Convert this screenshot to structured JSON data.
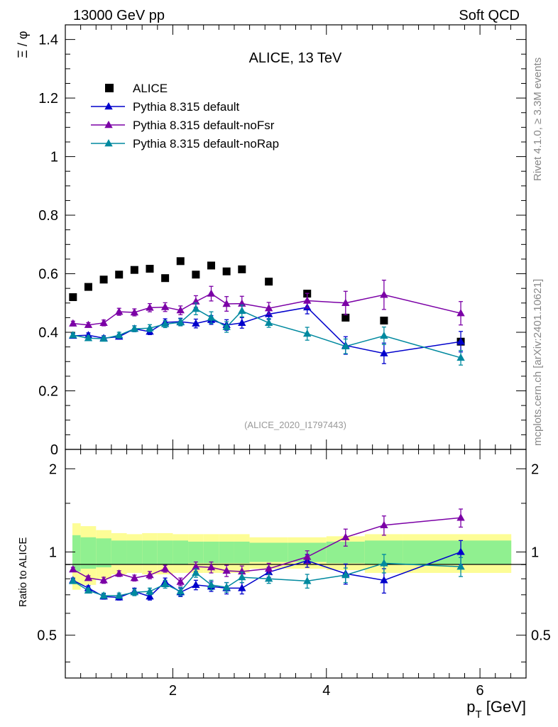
{
  "header": {
    "left_label": "13000 GeV pp",
    "right_label": "Soft QCD",
    "side_label_top": "Rivet 4.1.0, ≥ 3.3M events",
    "side_label_bottom": "mcplots.cern.ch [arXiv:2401.10621]",
    "ratio_ylabel": "Ratio to ALICE",
    "analysis_tag": "(ALICE_2020_I1797443)",
    "x_title_main": "p",
    "x_title_sub": "T",
    "x_title_unit": " [GeV]",
    "y_title": "Ξ / φ"
  },
  "colors": {
    "data": "#000000",
    "default": "#0000cc",
    "noFsr": "#7b00a6",
    "noRap": "#00899f",
    "band_inner": "#90f090",
    "band_outer": "#fdfd96"
  },
  "chart_data": [
    {
      "type": "scatter",
      "title": "ALICE, 13 TeV",
      "xlabel": "p_T [GeV]",
      "ylabel": "Ξ / φ",
      "xlim": [
        0.6,
        6.6
      ],
      "ylim": [
        0,
        1.45
      ],
      "yticks": [
        "0",
        "0.2",
        "0.4",
        "0.6",
        "0.8",
        "1",
        "1.2",
        "1.4"
      ],
      "legend_position": "top-left",
      "series": [
        {
          "name": "ALICE",
          "key": "data",
          "marker": "square",
          "x": [
            0.7,
            0.9,
            1.1,
            1.3,
            1.5,
            1.7,
            1.9,
            2.1,
            2.3,
            2.5,
            2.7,
            2.9,
            3.25,
            3.75,
            4.25,
            4.75,
            5.75
          ],
          "y": [
            0.52,
            0.555,
            0.58,
            0.597,
            0.613,
            0.617,
            0.585,
            0.643,
            0.597,
            0.628,
            0.608,
            0.615,
            0.573,
            0.532,
            0.45,
            0.44,
            0.368
          ]
        },
        {
          "name": "Pythia 8.315 default",
          "key": "default",
          "marker": "triangle",
          "x": [
            0.7,
            0.9,
            1.1,
            1.3,
            1.5,
            1.7,
            1.9,
            2.1,
            2.3,
            2.5,
            2.7,
            2.9,
            3.25,
            3.75,
            4.25,
            4.75,
            5.75
          ],
          "y": [
            0.388,
            0.39,
            0.38,
            0.385,
            0.412,
            0.402,
            0.434,
            0.436,
            0.43,
            0.442,
            0.425,
            0.432,
            0.462,
            0.485,
            0.355,
            0.328,
            0.368
          ],
          "err": [
            0.008,
            0.008,
            0.008,
            0.008,
            0.01,
            0.01,
            0.012,
            0.012,
            0.015,
            0.015,
            0.018,
            0.018,
            0.018,
            0.022,
            0.03,
            0.035,
            0.035
          ]
        },
        {
          "name": "Pythia 8.315 default-noFsr",
          "key": "noFsr",
          "marker": "triangle",
          "x": [
            0.7,
            0.9,
            1.1,
            1.3,
            1.5,
            1.7,
            1.9,
            2.1,
            2.3,
            2.5,
            2.7,
            2.9,
            3.25,
            3.75,
            4.25,
            4.75,
            5.75
          ],
          "y": [
            0.43,
            0.425,
            0.432,
            0.47,
            0.468,
            0.484,
            0.486,
            0.475,
            0.505,
            0.532,
            0.497,
            0.498,
            0.482,
            0.508,
            0.5,
            0.528,
            0.465
          ],
          "err": [
            0.008,
            0.008,
            0.01,
            0.012,
            0.012,
            0.014,
            0.015,
            0.015,
            0.02,
            0.025,
            0.025,
            0.025,
            0.02,
            0.025,
            0.04,
            0.05,
            0.04
          ]
        },
        {
          "name": "Pythia 8.315 default-noRap",
          "key": "noRap",
          "marker": "triangle",
          "x": [
            0.7,
            0.9,
            1.1,
            1.3,
            1.5,
            1.7,
            1.9,
            2.1,
            2.3,
            2.5,
            2.7,
            2.9,
            3.25,
            3.75,
            4.25,
            4.75,
            5.75
          ],
          "y": [
            0.39,
            0.38,
            0.378,
            0.39,
            0.412,
            0.414,
            0.428,
            0.434,
            0.48,
            0.45,
            0.418,
            0.473,
            0.432,
            0.395,
            0.352,
            0.388,
            0.313
          ],
          "err": [
            0.008,
            0.008,
            0.008,
            0.01,
            0.01,
            0.012,
            0.012,
            0.012,
            0.02,
            0.02,
            0.018,
            0.02,
            0.015,
            0.022,
            0.025,
            0.03,
            0.025
          ]
        }
      ]
    },
    {
      "type": "scatter",
      "xlabel": "p_T [GeV]",
      "ylabel": "Ratio to ALICE",
      "xlim": [
        0.6,
        6.6
      ],
      "ylim": [
        0.35,
        2.35
      ],
      "log_y": true,
      "yticks": [
        "0.5",
        "1",
        "2"
      ],
      "xticks": [
        "2",
        "4",
        "6"
      ],
      "reference_line": 1,
      "band_edges": [
        0.6,
        0.8,
        1.0,
        1.2,
        1.4,
        1.6,
        1.8,
        2.0,
        2.2,
        2.4,
        2.6,
        2.8,
        3.0,
        3.5,
        4.0,
        4.5,
        5.0,
        6.5
      ],
      "band_inner": [
        0.15,
        0.13,
        0.12,
        0.1,
        0.1,
        0.1,
        0.1,
        0.1,
        0.09,
        0.09,
        0.09,
        0.09,
        0.08,
        0.08,
        0.09,
        0.1,
        0.1
      ],
      "band_outer": [
        0.27,
        0.24,
        0.2,
        0.17,
        0.16,
        0.17,
        0.17,
        0.16,
        0.16,
        0.16,
        0.16,
        0.16,
        0.13,
        0.13,
        0.14,
        0.16,
        0.16
      ],
      "series": [
        {
          "name": "Pythia 8.315 default",
          "key": "default",
          "x": [
            0.7,
            0.9,
            1.1,
            1.3,
            1.5,
            1.7,
            1.9,
            2.1,
            2.3,
            2.5,
            2.7,
            2.9,
            3.25,
            3.75,
            4.25,
            4.75,
            5.75
          ],
          "y": [
            0.79,
            0.74,
            0.69,
            0.685,
            0.72,
            0.69,
            0.78,
            0.715,
            0.76,
            0.75,
            0.74,
            0.74,
            0.845,
            0.93,
            0.835,
            0.79,
            1.0
          ],
          "err": [
            0.015,
            0.015,
            0.015,
            0.015,
            0.02,
            0.02,
            0.025,
            0.025,
            0.03,
            0.03,
            0.035,
            0.035,
            0.035,
            0.05,
            0.07,
            0.08,
            0.1
          ]
        },
        {
          "name": "Pythia 8.315 default-noFsr",
          "key": "noFsr",
          "x": [
            0.7,
            0.9,
            1.1,
            1.3,
            1.5,
            1.7,
            1.9,
            2.1,
            2.3,
            2.5,
            2.7,
            2.9,
            3.25,
            3.75,
            4.25,
            4.75,
            5.75
          ],
          "y": [
            0.865,
            0.805,
            0.79,
            0.835,
            0.805,
            0.825,
            0.87,
            0.78,
            0.885,
            0.88,
            0.855,
            0.85,
            0.87,
            0.96,
            1.13,
            1.25,
            1.33
          ],
          "err": [
            0.015,
            0.015,
            0.02,
            0.02,
            0.02,
            0.025,
            0.025,
            0.025,
            0.035,
            0.04,
            0.04,
            0.04,
            0.04,
            0.05,
            0.08,
            0.1,
            0.1
          ]
        },
        {
          "name": "Pythia 8.315 default-noRap",
          "key": "noRap",
          "x": [
            0.7,
            0.9,
            1.1,
            1.3,
            1.5,
            1.7,
            1.9,
            2.1,
            2.3,
            2.5,
            2.7,
            2.9,
            3.25,
            3.75,
            4.25,
            4.75,
            5.75
          ],
          "y": [
            0.785,
            0.725,
            0.695,
            0.695,
            0.715,
            0.72,
            0.765,
            0.72,
            0.84,
            0.76,
            0.745,
            0.81,
            0.8,
            0.785,
            0.825,
            0.91,
            0.885
          ],
          "err": [
            0.015,
            0.015,
            0.015,
            0.015,
            0.02,
            0.02,
            0.025,
            0.025,
            0.03,
            0.03,
            0.03,
            0.035,
            0.03,
            0.045,
            0.05,
            0.07,
            0.07
          ]
        }
      ]
    }
  ]
}
